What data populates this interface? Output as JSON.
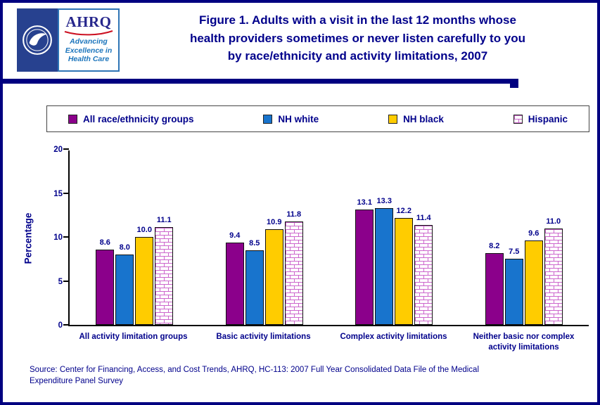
{
  "page": {
    "border_color": "#000080",
    "background": "#FFFFFF"
  },
  "logo": {
    "ahrq_acronym": "AHRQ",
    "tagline_line1": "Advancing",
    "tagline_line2": "Excellence in",
    "tagline_line3": "Health Care"
  },
  "header": {
    "title_line1": "Figure 1. Adults with a visit in the last 12 months whose",
    "title_line2": "health providers sometimes or never listen carefully to you",
    "title_line3": "by race/ethnicity and activity limitations, 2007"
  },
  "chart_data": {
    "type": "bar",
    "title": "Figure 1. Adults with a visit in the last 12 months whose health providers sometimes or never listen carefully to you by race/ethnicity and activity limitations, 2007",
    "xlabel": "",
    "ylabel": "Percentage",
    "ylim": [
      0,
      20
    ],
    "yticks": [
      0,
      5,
      10,
      15,
      20
    ],
    "grid": false,
    "legend_position": "top",
    "value_decimals": 1,
    "categories": [
      "All activity limitation groups",
      "Basic activity limitations",
      "Complex activity limitations",
      "Neither basic nor complex activity limitations"
    ],
    "series": [
      {
        "name": "All race/ethnicity groups",
        "color": "#8B008B",
        "values": [
          8.6,
          9.4,
          13.1,
          8.2
        ]
      },
      {
        "name": "NH white",
        "color": "#1874CD",
        "values": [
          8.0,
          8.5,
          13.3,
          7.5
        ]
      },
      {
        "name": "NH black",
        "color": "#FFCC00",
        "values": [
          10.0,
          10.9,
          12.2,
          9.6
        ]
      },
      {
        "name": "Hispanic",
        "color": "#CC66CC",
        "pattern": "brick",
        "values": [
          11.1,
          11.8,
          11.4,
          11.0
        ]
      }
    ]
  },
  "source": {
    "line1": "Source: Center for Financing, Access, and Cost Trends, AHRQ, HC-113: 2007 Full Year Consolidated Data File of the Medical",
    "line2": "Expenditure Panel Survey"
  }
}
